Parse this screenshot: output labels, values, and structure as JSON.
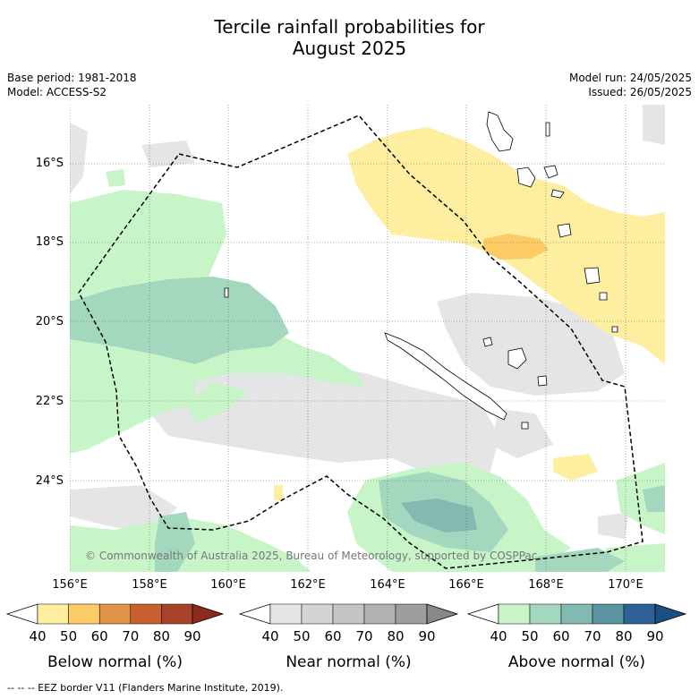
{
  "title_line1": "Tercile rainfall probabilities for",
  "title_line2": "August 2025",
  "base_period": "Base period: 1981-2018",
  "model": "Model: ACCESS-S2",
  "model_run": "Model run: 24/05/2025",
  "issued": "Issued: 26/05/2025",
  "lat_labels": [
    "16°S",
    "18°S",
    "20°S",
    "22°S",
    "24°S"
  ],
  "lon_labels": [
    "156°E",
    "158°E",
    "160°E",
    "162°E",
    "164°E",
    "166°E",
    "168°E",
    "170°E"
  ],
  "copyright": "© Commonwealth of Australia 2025, Bureau of Meteorology, supported by COSPPac",
  "colorbars": [
    {
      "label": "Below normal (%)",
      "ticks": [
        "40",
        "50",
        "60",
        "70",
        "80",
        "90"
      ],
      "colors": [
        "#ffffff",
        "#fdeea0",
        "#fccb66",
        "#e0944a",
        "#c9602f",
        "#a8432a",
        "#8c2a1e"
      ]
    },
    {
      "label": "Near normal (%)",
      "ticks": [
        "40",
        "50",
        "60",
        "70",
        "80",
        "90"
      ],
      "colors": [
        "#ffffff",
        "#e5e5e5",
        "#d4d4d4",
        "#c4c4c4",
        "#b1b1b1",
        "#9e9e9e",
        "#888888"
      ]
    },
    {
      "label": "Above normal (%)",
      "ticks": [
        "40",
        "50",
        "60",
        "70",
        "80",
        "90"
      ],
      "colors": [
        "#ffffff",
        "#c8f5c8",
        "#a3d8be",
        "#82b9b0",
        "#5a94a0",
        "#2e6196",
        "#1a4f82"
      ]
    }
  ],
  "footer": "-- -- -- EEZ border V11 (Flanders Marine Institute, 2019).",
  "map_colors": {
    "below_50": "#fdeea0",
    "below_60": "#fccb66",
    "near_50": "#e5e5e5",
    "above_50": "#c8f5c8",
    "above_60": "#a3d8be",
    "above_70": "#82b9b0"
  }
}
